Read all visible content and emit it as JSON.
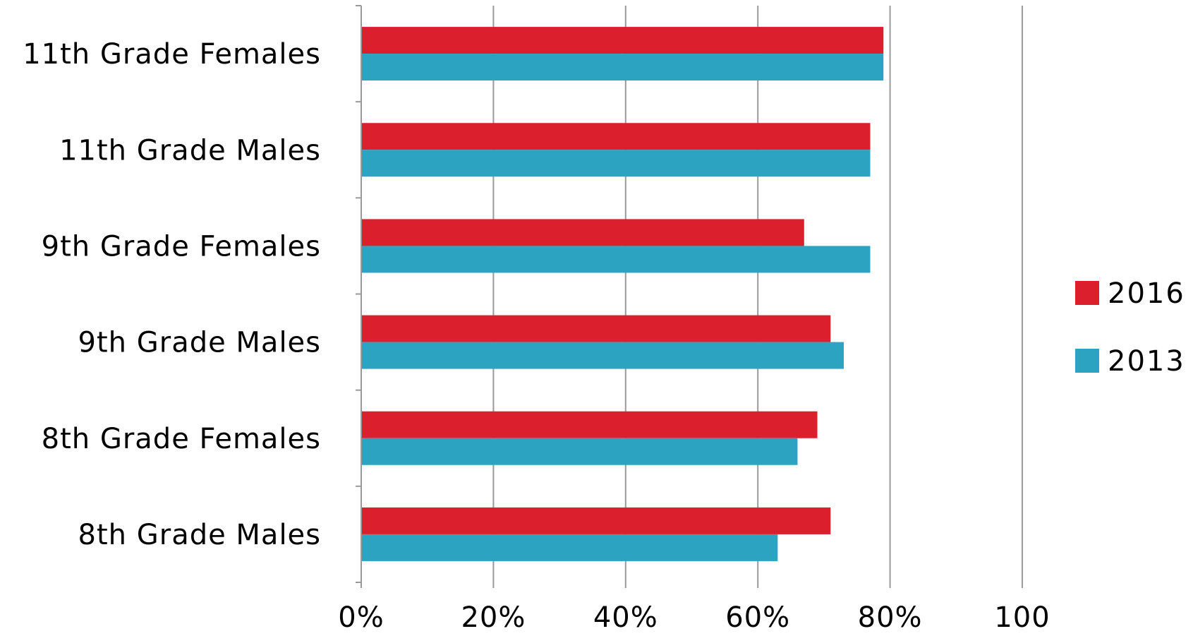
{
  "chart_data": {
    "type": "bar",
    "orientation": "horizontal",
    "categories": [
      "11th Grade Females",
      "11th Grade Males",
      "9th Grade Females",
      "9th Grade Males",
      "8th Grade Females",
      "8th Grade Males"
    ],
    "series": [
      {
        "name": "2016",
        "color": "#dc1f2c",
        "values": [
          79,
          77,
          67,
          71,
          69,
          71
        ]
      },
      {
        "name": "2013",
        "color": "#2ca3c0",
        "values": [
          79,
          77,
          77,
          73,
          66,
          63
        ]
      }
    ],
    "x_ticks": [
      "0%",
      "20%",
      "40%",
      "60%",
      "80%",
      "100"
    ],
    "xlim": [
      0,
      100
    ],
    "grid": true,
    "grid_color": "#9a9a9a",
    "legend_position": "right"
  }
}
